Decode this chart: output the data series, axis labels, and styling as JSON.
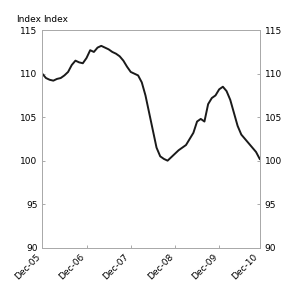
{
  "ylabel_left": "Index",
  "ylabel_right": "Index",
  "ylim": [
    90,
    115
  ],
  "yticks": [
    90,
    95,
    100,
    105,
    110,
    115
  ],
  "line_color": "#1a1a1a",
  "line_width": 1.4,
  "background_color": "#ffffff",
  "x_labels": [
    "Dec-05",
    "Dec-06",
    "Dec-07",
    "Dec-08",
    "Dec-09",
    "Dec-10"
  ],
  "x_tick_positions": [
    0,
    12,
    24,
    36,
    48,
    59
  ],
  "x_values": [
    0,
    1,
    2,
    3,
    4,
    5,
    6,
    7,
    8,
    9,
    10,
    11,
    12,
    13,
    14,
    15,
    16,
    17,
    18,
    19,
    20,
    21,
    22,
    23,
    24,
    25,
    26,
    27,
    28,
    29,
    30,
    31,
    32,
    33,
    34,
    35,
    36,
    37,
    38,
    39,
    40,
    41,
    42,
    43,
    44,
    45,
    46,
    47,
    48,
    49,
    50,
    51,
    52,
    53,
    54,
    55,
    56,
    57,
    58,
    59
  ],
  "y_values": [
    110.0,
    109.5,
    109.3,
    109.2,
    109.4,
    109.5,
    109.8,
    110.2,
    111.0,
    111.5,
    111.3,
    111.2,
    111.8,
    112.7,
    112.5,
    113.0,
    113.2,
    113.0,
    112.8,
    112.5,
    112.3,
    112.0,
    111.5,
    110.8,
    110.2,
    110.0,
    109.8,
    109.0,
    107.5,
    105.5,
    103.5,
    101.5,
    100.5,
    100.2,
    100.0,
    100.4,
    100.8,
    101.2,
    101.5,
    101.8,
    102.5,
    103.2,
    104.5,
    104.8,
    104.5,
    106.5,
    107.2,
    107.5,
    108.2,
    108.5,
    108.0,
    107.0,
    105.5,
    104.0,
    103.0,
    102.5,
    102.0,
    101.5,
    101.0,
    100.2
  ],
  "spine_color": "#aaaaaa",
  "tick_label_fontsize": 6.5,
  "axis_label_fontsize": 6.5
}
